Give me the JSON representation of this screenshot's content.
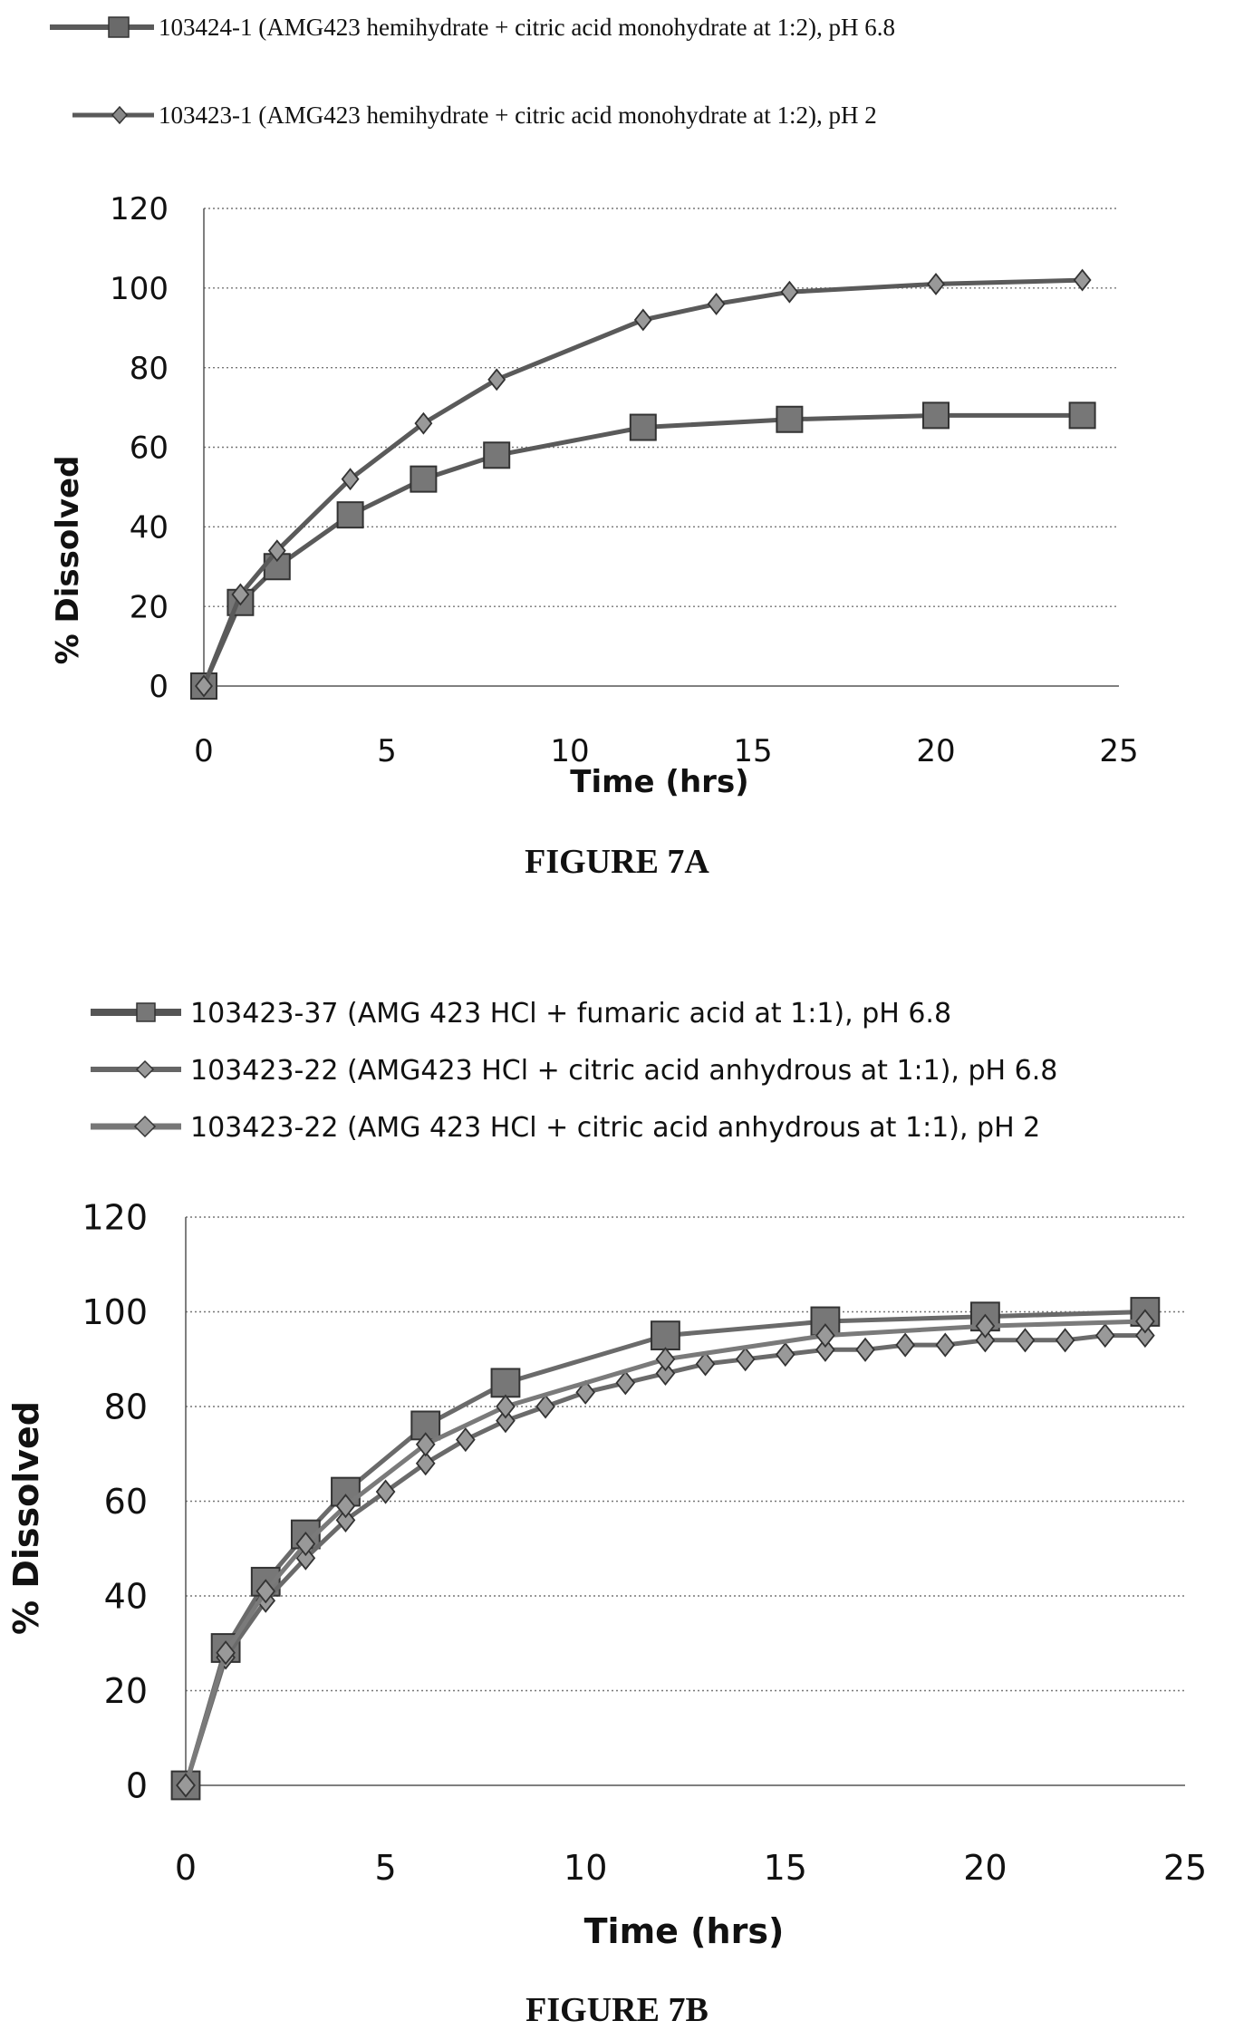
{
  "chart_data": [
    {
      "type": "line",
      "caption": "FIGURE 7A",
      "xlabel": "Time (hrs)",
      "ylabel": "% Dissolved",
      "xlim": [
        0,
        25
      ],
      "ylim": [
        0,
        120
      ],
      "xticks": [
        "0",
        "5",
        "10",
        "15",
        "20",
        "25"
      ],
      "yticks": [
        "0",
        "20",
        "40",
        "60",
        "80",
        "100",
        "120"
      ],
      "grid": true,
      "legend_position": "top",
      "series": [
        {
          "name": "103424-1 (AMG423 hemihydrate + citric acid monohydrate at 1:2), pH 6.8",
          "marker": "square",
          "color": "#5a5a5a",
          "x": [
            0,
            1,
            2,
            4,
            6,
            8,
            12,
            16,
            20,
            24
          ],
          "y": [
            0,
            21,
            30,
            43,
            52,
            58,
            65,
            67,
            68,
            68
          ]
        },
        {
          "name": "103423-1 (AMG423 hemihydrate + citric acid monohydrate at 1:2), pH 2",
          "marker": "diamond",
          "color": "#5a5a5a",
          "x": [
            0,
            1,
            2,
            4,
            6,
            8,
            12,
            14,
            16,
            20,
            24
          ],
          "y": [
            0,
            23,
            34,
            52,
            66,
            77,
            92,
            96,
            99,
            101,
            102
          ]
        }
      ]
    },
    {
      "type": "line",
      "caption": "FIGURE 7B",
      "xlabel": "Time (hrs)",
      "ylabel": "% Dissolved",
      "xlim": [
        0,
        25
      ],
      "ylim": [
        0,
        120
      ],
      "xticks": [
        "0",
        "5",
        "10",
        "15",
        "20",
        "25"
      ],
      "yticks": [
        "0",
        "20",
        "40",
        "60",
        "80",
        "100",
        "120"
      ],
      "grid": true,
      "legend_position": "top",
      "series": [
        {
          "name": "103423-37 (AMG 423 HCl + fumaric acid at 1:1), pH 6.8",
          "marker": "square",
          "color": "#6a6a6a",
          "x": [
            0,
            1,
            2,
            3,
            4,
            6,
            8,
            12,
            16,
            20,
            24
          ],
          "y": [
            0,
            29,
            43,
            53,
            62,
            76,
            85,
            95,
            98,
            99,
            100
          ]
        },
        {
          "name": "103423-22 (AMG423 HCl + citric acid anhydrous at 1:1), pH 6.8",
          "marker": "diamond",
          "color": "#6a6a6a",
          "x": [
            0,
            1,
            2,
            3,
            4,
            5,
            6,
            7,
            8,
            9,
            10,
            11,
            12,
            13,
            14,
            15,
            16,
            17,
            18,
            19,
            20,
            21,
            22,
            23,
            24
          ],
          "y": [
            0,
            27,
            39,
            48,
            56,
            62,
            68,
            73,
            77,
            80,
            83,
            85,
            87,
            89,
            90,
            91,
            92,
            92,
            93,
            93,
            94,
            94,
            94,
            95,
            95
          ]
        },
        {
          "name": "103423-22 (AMG 423 HCl + citric acid anhydrous at 1:1), pH 2",
          "marker": "diamond",
          "color": "#7a7a7a",
          "x": [
            0,
            1,
            2,
            3,
            4,
            6,
            8,
            12,
            16,
            20,
            24
          ],
          "y": [
            0,
            28,
            41,
            51,
            59,
            72,
            80,
            90,
            95,
            97,
            98
          ]
        }
      ]
    }
  ]
}
